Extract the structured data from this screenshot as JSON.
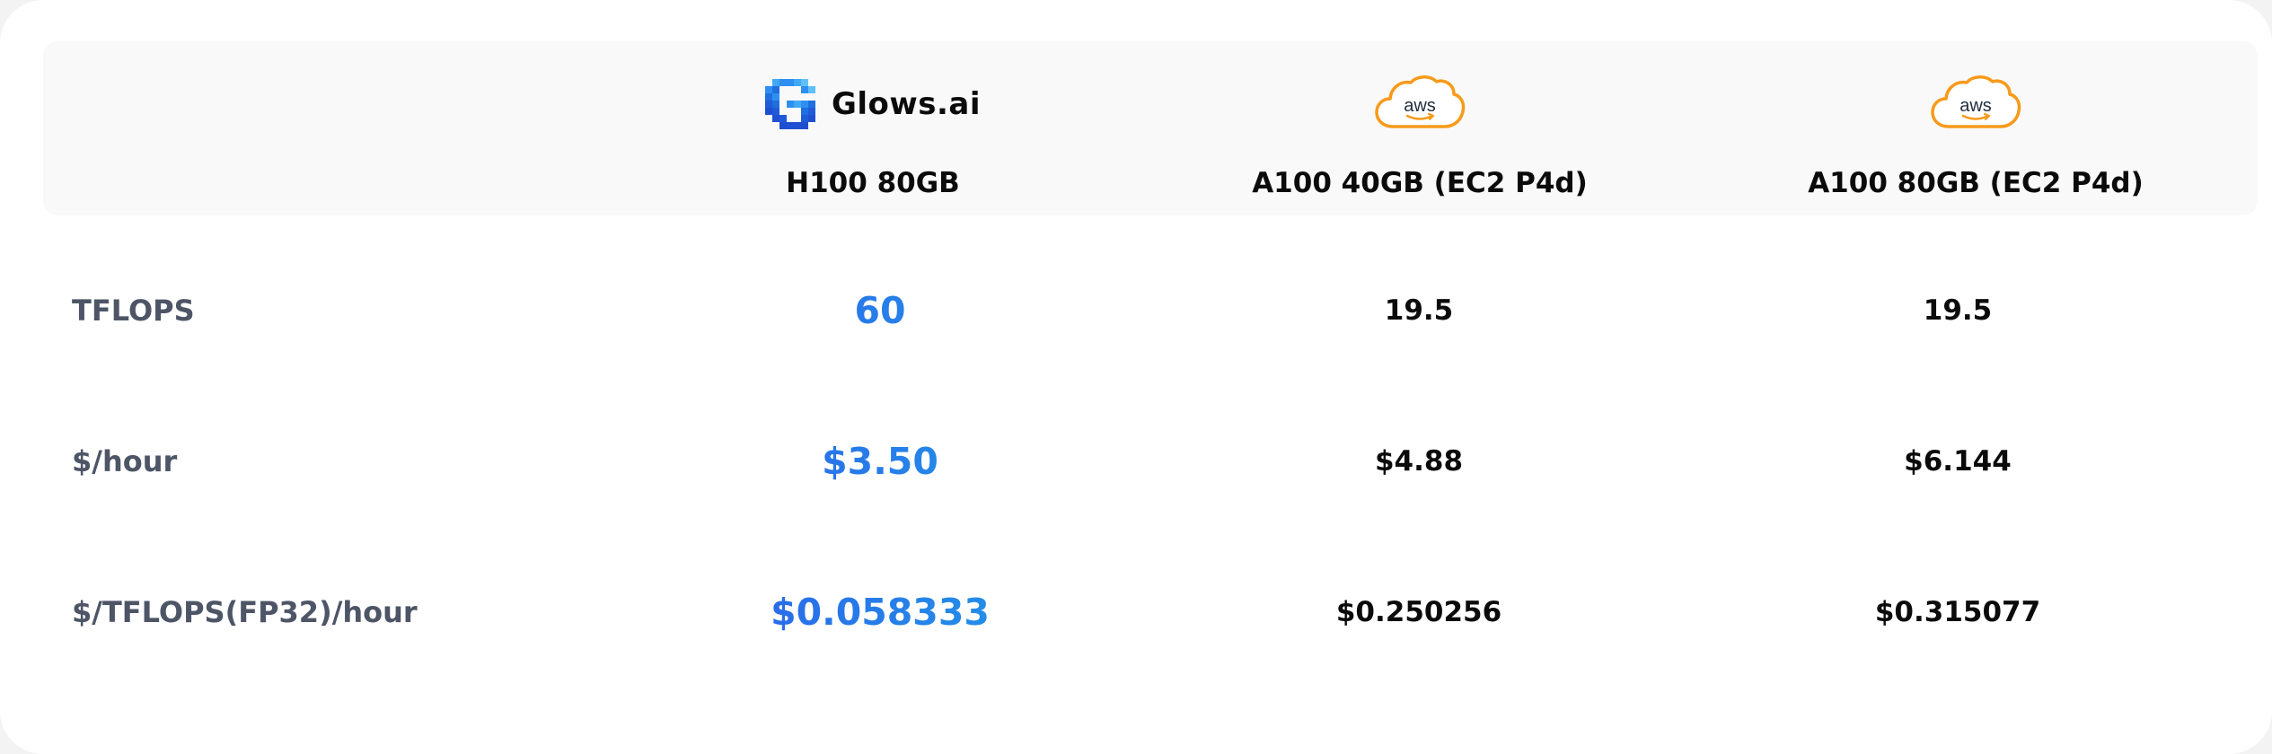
{
  "brand_colors": {
    "glows_gradient_start": "#2f54eb",
    "glows_gradient_end": "#1ea6e6",
    "aws_orange": "#f79a1a",
    "label_gray": "#4d5566",
    "header_bg": "#f9f9f9"
  },
  "columns": [
    {
      "provider": "Glows.ai",
      "logo_icon": "glows-pixel-g-icon",
      "gpu": "H100 80GB"
    },
    {
      "provider_logo_text": "aws",
      "logo_icon": "aws-cloud-icon",
      "gpu": "A100 40GB (EC2 P4d)"
    },
    {
      "provider_logo_text": "aws",
      "logo_icon": "aws-cloud-icon",
      "gpu": "A100 80GB (EC2 P4d)"
    }
  ],
  "rows": [
    {
      "label": "TFLOPS",
      "values": [
        "60",
        "19.5",
        "19.5"
      ]
    },
    {
      "label": "$/hour",
      "values": [
        "$3.50",
        "$4.88",
        "$6.144"
      ]
    },
    {
      "label": "$/TFLOPS(FP32)/hour",
      "values": [
        "$0.058333",
        "$0.250256",
        "$0.315077"
      ]
    }
  ]
}
